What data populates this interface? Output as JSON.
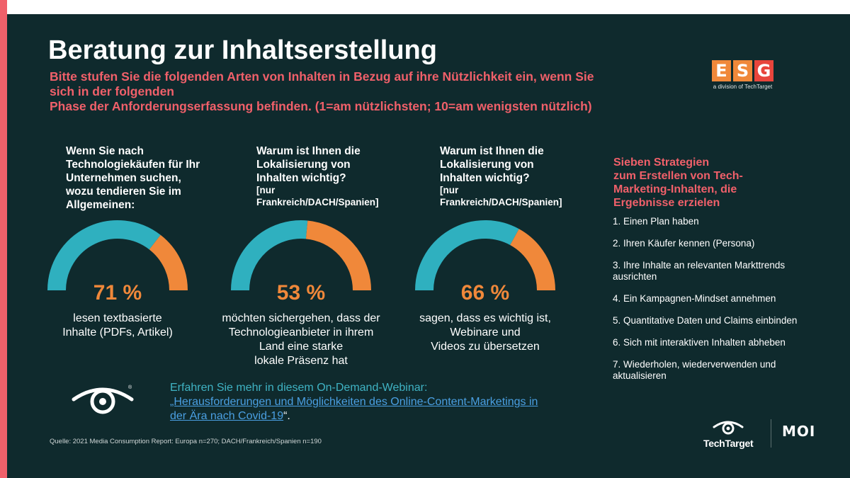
{
  "slide": {
    "title": "Beratung zur Inhaltserstellung",
    "question_lines": [
      "Bitte stufen Sie die folgenden Arten von Inhalten in Bezug auf ihre Nützlichkeit ein, wenn Sie",
      "sich in der folgenden",
      "Phase der Anforderungserfassung befinden. (1=am nützlichsten; 10=am wenigsten nützlich)"
    ]
  },
  "columns": [
    {
      "heading_lines": [
        "Wenn Sie nach",
        "Technologiekäufen für Ihr",
        "Unternehmen suchen,",
        "wozu tendieren Sie im",
        "Allgemeinen:"
      ],
      "sub_lines": [],
      "percent_label": "71 %",
      "value": 71,
      "caption_lines": [
        "lesen textbasierte",
        "Inhalte (PDFs, Artikel)"
      ]
    },
    {
      "heading_lines": [
        "Warum ist Ihnen die",
        "Lokalisierung von",
        "Inhalten wichtig?"
      ],
      "sub_lines": [
        "[nur",
        "Frankreich/DACH/Spanien]"
      ],
      "percent_label": "53 %",
      "value": 53,
      "caption_lines": [
        "möchten sichergehen, dass der",
        "Technologieanbieter in ihrem",
        "Land eine starke",
        "lokale Präsenz hat"
      ]
    },
    {
      "heading_lines": [
        "Warum ist Ihnen die",
        "Lokalisierung von",
        "Inhalten wichtig?"
      ],
      "sub_lines": [
        "[nur",
        "Frankreich/DACH/Spanien]"
      ],
      "percent_label": "66 %",
      "value": 66,
      "caption_lines": [
        "sagen, dass es wichtig ist,",
        "Webinare und",
        "Videos zu übersetzen"
      ]
    }
  ],
  "strategies": {
    "title_lines": [
      "Sieben Strategien",
      "zum Erstellen von Tech-",
      "Marketing-Inhalten, die",
      "Ergebnisse erzielen"
    ],
    "items": [
      "1. Einen Plan haben",
      "2. Ihren Käufer kennen (Persona)",
      "3. Ihre Inhalte an relevanten Markttrends ausrichten",
      "4. Ein Kampagnen-Mindset annehmen",
      "5. Quantitative Daten und Claims einbinden",
      "6. Sich mit interaktiven Inhalten abheben",
      "7. Wiederholen, wiederverwenden und aktualisieren"
    ]
  },
  "webinar": {
    "intro": "Erfahren Sie mehr in diesem On-Demand-Webinar:",
    "link_text": "„Herausforderungen und Möglichkeiten des Online-Content-Marketings in der Ära nach Covid-19",
    "closing": "“."
  },
  "source": "Quelle: 2021 Media Consumption Report: Europa n=270; DACH/Frankreich/Spanien n=190",
  "logos": {
    "esg_letters": [
      "E",
      "S",
      "G"
    ],
    "esg_sub": "a division of TechTarget",
    "techtarget": "TechTarget",
    "moi": "MOI",
    "registered": "®"
  },
  "colors": {
    "background": "#0f2a2d",
    "accent_red": "#f0606a",
    "gauge_teal": "#2fb0bf",
    "gauge_orange": "#f0883a",
    "esg_orange": "#f0883a",
    "esg_red": "#e8453c"
  },
  "icons": [
    "eye-icon",
    "techtarget-eye-icon"
  ]
}
